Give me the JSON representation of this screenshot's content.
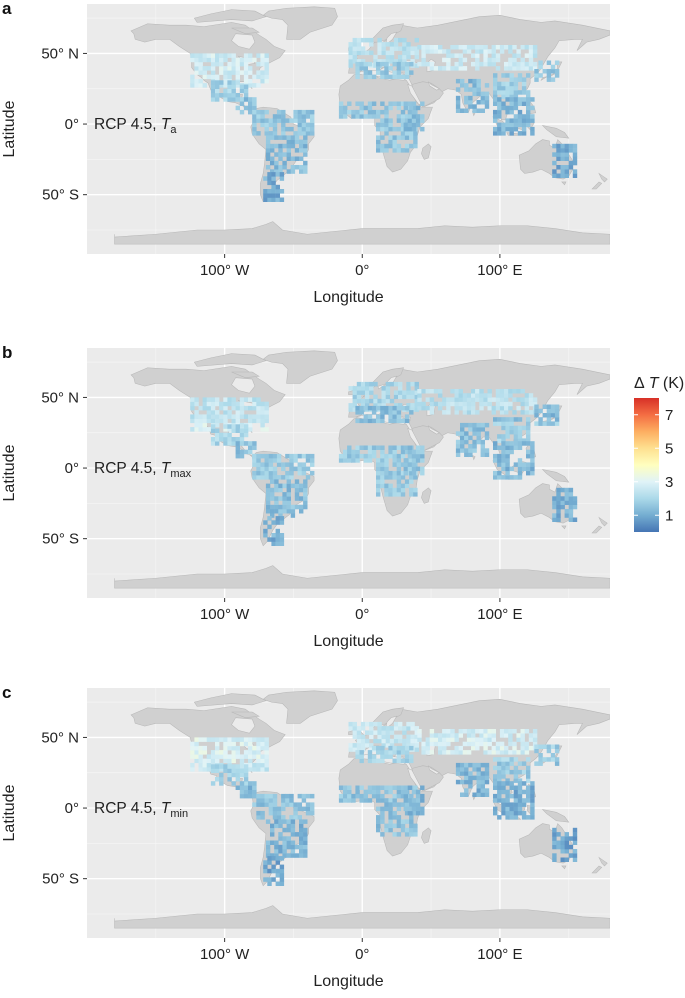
{
  "chart_data": [
    {
      "type": "heatmap",
      "panel": "a",
      "label": "RCP 4.5, ",
      "var_symbol": "T",
      "var_sub": "a",
      "xlabel": "Longitude",
      "ylabel": "Latitude",
      "xticks": [
        "100° W",
        "0°",
        "100° E"
      ],
      "yticks": [
        "50° N",
        "0°",
        "50° S"
      ],
      "xtick_values": [
        -100,
        0,
        100
      ],
      "ytick_values": [
        50,
        0,
        -50
      ],
      "xlim": [
        -200,
        180
      ],
      "ylim": [
        -92,
        85
      ],
      "grid": true
    },
    {
      "type": "heatmap",
      "panel": "b",
      "label": "RCP 4.5, ",
      "var_symbol": "T",
      "var_sub": "max",
      "xlabel": "Longitude",
      "ylabel": "Latitude",
      "xticks": [
        "100° W",
        "0°",
        "100° E"
      ],
      "yticks": [
        "50° N",
        "0°",
        "50° S"
      ],
      "xtick_values": [
        -100,
        0,
        100
      ],
      "ytick_values": [
        50,
        0,
        -50
      ],
      "xlim": [
        -200,
        180
      ],
      "ylim": [
        -92,
        85
      ],
      "grid": true
    },
    {
      "type": "heatmap",
      "panel": "c",
      "label": "RCP 4.5, ",
      "var_symbol": "T",
      "var_sub": "min",
      "xlabel": "Longitude",
      "ylabel": "Latitude",
      "xticks": [
        "100° W",
        "0°",
        "100° E"
      ],
      "yticks": [
        "50° N",
        "0°",
        "50° S"
      ],
      "xtick_values": [
        -100,
        0,
        100
      ],
      "ytick_values": [
        50,
        0,
        -50
      ],
      "xlim": [
        -200,
        180
      ],
      "ylim": [
        -92,
        85
      ],
      "grid": true
    }
  ],
  "colorbar": {
    "title_delta": "Δ",
    "title_symbol": "T",
    "title_unit": " (K)",
    "ticks": [
      "7",
      "5",
      "3",
      "1"
    ],
    "tick_values": [
      7,
      5,
      3,
      1
    ],
    "range": [
      0,
      8
    ],
    "colors": [
      "#4575b4",
      "#74add1",
      "#abd9e9",
      "#e0f3f8",
      "#ffffbf",
      "#fee090",
      "#fdae61",
      "#f46d43",
      "#d73027"
    ]
  },
  "style": {
    "panel_bg": "#ebebeb",
    "land": "#d0d0d0",
    "grid": "#ffffff",
    "cool": "#4a7fc4",
    "light": "#c8e2ef"
  }
}
